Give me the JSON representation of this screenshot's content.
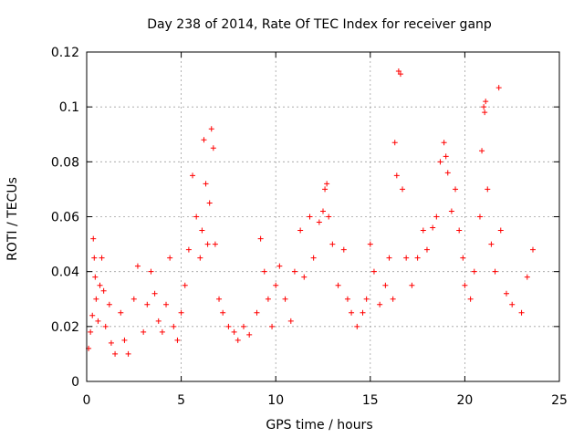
{
  "chart_data": {
    "type": "scatter",
    "title": "Day 238 of 2014, Rate Of TEC Index for receiver ganp",
    "xlabel": "GPS time / hours",
    "ylabel": "ROTI / TECUs",
    "xlim": [
      0,
      25
    ],
    "ylim": [
      0,
      0.12
    ],
    "xticks": [
      0,
      5,
      10,
      15,
      20,
      25
    ],
    "xtick_labels": [
      "0",
      "5",
      "10",
      "15",
      "20",
      "25"
    ],
    "yticks": [
      0,
      0.02,
      0.04,
      0.06,
      0.08,
      0.1,
      0.12
    ],
    "ytick_labels": [
      "0",
      "0.02",
      "0.04",
      "0.06",
      "0.08",
      "0.1",
      "0.12"
    ],
    "grid": true,
    "marker": "+",
    "color": "#ff0000",
    "series": [
      {
        "name": "ROTI",
        "points": [
          [
            0.1,
            0.012
          ],
          [
            0.2,
            0.018
          ],
          [
            0.3,
            0.024
          ],
          [
            0.35,
            0.052
          ],
          [
            0.4,
            0.045
          ],
          [
            0.45,
            0.038
          ],
          [
            0.5,
            0.03
          ],
          [
            0.6,
            0.022
          ],
          [
            0.7,
            0.035
          ],
          [
            0.8,
            0.045
          ],
          [
            0.9,
            0.033
          ],
          [
            1.0,
            0.02
          ],
          [
            1.2,
            0.028
          ],
          [
            1.3,
            0.014
          ],
          [
            1.5,
            0.01
          ],
          [
            1.8,
            0.025
          ],
          [
            2.0,
            0.015
          ],
          [
            2.2,
            0.01
          ],
          [
            2.5,
            0.03
          ],
          [
            2.7,
            0.042
          ],
          [
            3.0,
            0.018
          ],
          [
            3.2,
            0.028
          ],
          [
            3.4,
            0.04
          ],
          [
            3.6,
            0.032
          ],
          [
            3.8,
            0.022
          ],
          [
            4.0,
            0.018
          ],
          [
            4.2,
            0.028
          ],
          [
            4.4,
            0.045
          ],
          [
            4.6,
            0.02
          ],
          [
            4.8,
            0.015
          ],
          [
            5.0,
            0.025
          ],
          [
            5.2,
            0.035
          ],
          [
            5.4,
            0.048
          ],
          [
            5.6,
            0.075
          ],
          [
            5.8,
            0.06
          ],
          [
            6.0,
            0.045
          ],
          [
            6.1,
            0.055
          ],
          [
            6.2,
            0.088
          ],
          [
            6.3,
            0.072
          ],
          [
            6.4,
            0.05
          ],
          [
            6.5,
            0.065
          ],
          [
            6.6,
            0.092
          ],
          [
            6.7,
            0.085
          ],
          [
            6.8,
            0.05
          ],
          [
            7.0,
            0.03
          ],
          [
            7.2,
            0.025
          ],
          [
            7.5,
            0.02
          ],
          [
            7.8,
            0.018
          ],
          [
            8.0,
            0.015
          ],
          [
            8.3,
            0.02
          ],
          [
            8.6,
            0.017
          ],
          [
            9.0,
            0.025
          ],
          [
            9.2,
            0.052
          ],
          [
            9.4,
            0.04
          ],
          [
            9.6,
            0.03
          ],
          [
            9.8,
            0.02
          ],
          [
            10.0,
            0.035
          ],
          [
            10.2,
            0.042
          ],
          [
            10.5,
            0.03
          ],
          [
            10.8,
            0.022
          ],
          [
            11.0,
            0.04
          ],
          [
            11.3,
            0.055
          ],
          [
            11.5,
            0.038
          ],
          [
            11.8,
            0.06
          ],
          [
            12.0,
            0.045
          ],
          [
            12.3,
            0.058
          ],
          [
            12.5,
            0.062
          ],
          [
            12.6,
            0.07
          ],
          [
            12.7,
            0.072
          ],
          [
            12.8,
            0.06
          ],
          [
            13.0,
            0.05
          ],
          [
            13.3,
            0.035
          ],
          [
            13.6,
            0.048
          ],
          [
            13.8,
            0.03
          ],
          [
            14.0,
            0.025
          ],
          [
            14.3,
            0.02
          ],
          [
            14.6,
            0.025
          ],
          [
            14.8,
            0.03
          ],
          [
            15.0,
            0.05
          ],
          [
            15.2,
            0.04
          ],
          [
            15.5,
            0.028
          ],
          [
            15.8,
            0.035
          ],
          [
            16.0,
            0.045
          ],
          [
            16.2,
            0.03
          ],
          [
            16.3,
            0.087
          ],
          [
            16.4,
            0.075
          ],
          [
            16.5,
            0.113
          ],
          [
            16.6,
            0.112
          ],
          [
            16.7,
            0.07
          ],
          [
            16.9,
            0.045
          ],
          [
            17.2,
            0.035
          ],
          [
            17.5,
            0.045
          ],
          [
            17.8,
            0.055
          ],
          [
            18.0,
            0.048
          ],
          [
            18.3,
            0.056
          ],
          [
            18.5,
            0.06
          ],
          [
            18.7,
            0.08
          ],
          [
            18.9,
            0.087
          ],
          [
            19.0,
            0.082
          ],
          [
            19.1,
            0.076
          ],
          [
            19.3,
            0.062
          ],
          [
            19.5,
            0.07
          ],
          [
            19.7,
            0.055
          ],
          [
            19.9,
            0.045
          ],
          [
            20.0,
            0.035
          ],
          [
            20.3,
            0.03
          ],
          [
            20.5,
            0.04
          ],
          [
            20.8,
            0.06
          ],
          [
            20.9,
            0.084
          ],
          [
            21.0,
            0.1
          ],
          [
            21.05,
            0.098
          ],
          [
            21.1,
            0.102
          ],
          [
            21.2,
            0.07
          ],
          [
            21.4,
            0.05
          ],
          [
            21.6,
            0.04
          ],
          [
            21.8,
            0.107
          ],
          [
            21.9,
            0.055
          ],
          [
            22.2,
            0.032
          ],
          [
            22.5,
            0.028
          ],
          [
            23.0,
            0.025
          ],
          [
            23.3,
            0.038
          ],
          [
            23.6,
            0.048
          ]
        ]
      }
    ]
  }
}
